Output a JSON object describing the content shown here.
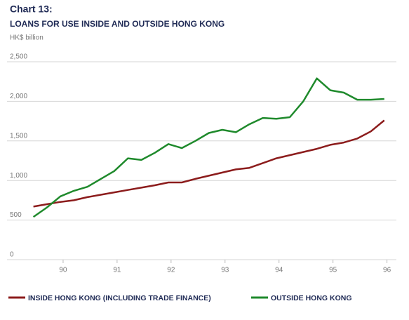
{
  "chart_data": {
    "type": "line",
    "title": "Chart 13:",
    "subtitle": "LOANS FOR USE INSIDE AND OUTSIDE HONG KONG",
    "y_label": "HK$ billion",
    "x": [
      89.45,
      89.7,
      89.95,
      90.2,
      90.45,
      90.7,
      90.95,
      91.2,
      91.45,
      91.7,
      91.95,
      92.2,
      92.45,
      92.7,
      92.95,
      93.2,
      93.45,
      93.7,
      93.95,
      94.2,
      94.45,
      94.7,
      94.95,
      95.2,
      95.45,
      95.7,
      95.95
    ],
    "xlim": [
      89,
      96.2
    ],
    "xticks": [
      90,
      91,
      92,
      93,
      94,
      95,
      96
    ],
    "ylim": [
      0,
      2500
    ],
    "yticks": [
      0,
      500,
      {
        "value": 1000,
        "label": "1,000"
      },
      {
        "value": 1500,
        "label": "1,500"
      },
      {
        "value": 2000,
        "label": "2,000"
      },
      {
        "value": 2500,
        "label": "2,500"
      }
    ],
    "grid": true,
    "series": [
      {
        "name": "INSIDE HONG KONG (INCLUDING TRADE FINANCE)",
        "color": "#8c1c1c",
        "values": [
          670,
          700,
          730,
          750,
          790,
          820,
          850,
          880,
          910,
          940,
          975,
          975,
          1020,
          1060,
          1100,
          1140,
          1160,
          1220,
          1280,
          1320,
          1360,
          1400,
          1450,
          1480,
          1530,
          1620,
          1760
        ]
      },
      {
        "name": "OUTSIDE HONG KONG",
        "color": "#1f8a2c",
        "values": [
          540,
          660,
          800,
          870,
          920,
          1020,
          1120,
          1280,
          1260,
          1350,
          1460,
          1410,
          1500,
          1600,
          1640,
          1610,
          1710,
          1790,
          1780,
          1800,
          2000,
          2290,
          2140,
          2110,
          2020,
          2020,
          2030
        ]
      }
    ]
  }
}
